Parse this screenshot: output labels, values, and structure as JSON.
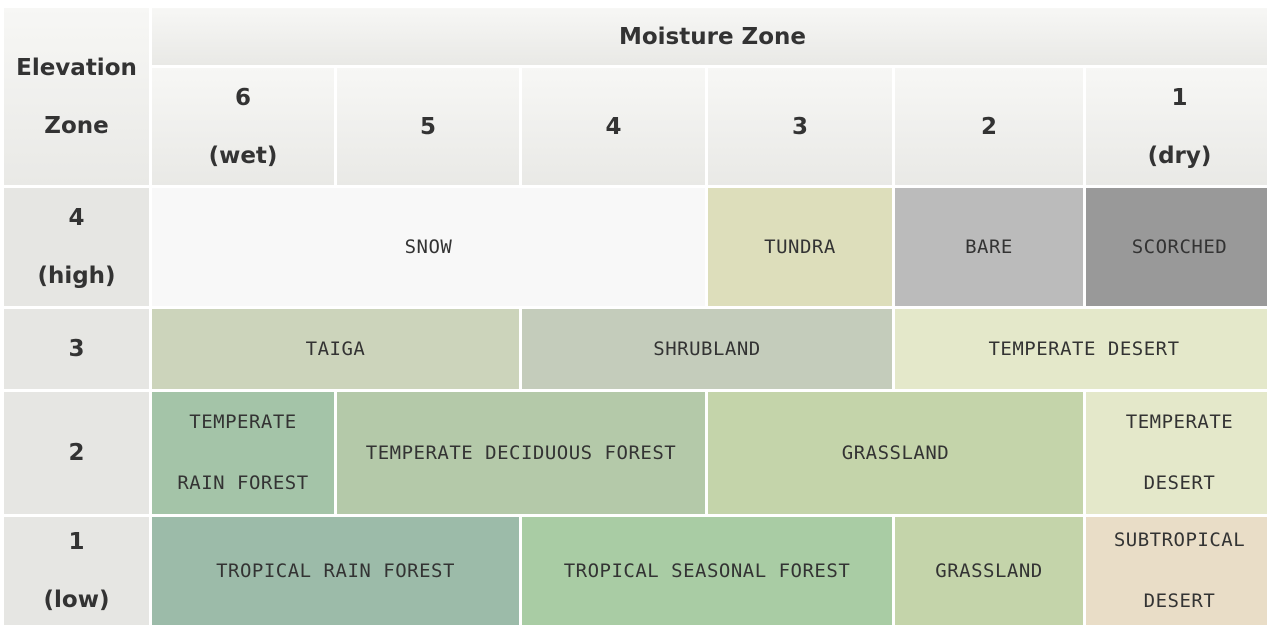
{
  "header": {
    "elevation_line1": "Elevation",
    "elevation_line2": "Zone",
    "moisture_title": "Moisture Zone"
  },
  "moisture_columns": [
    {
      "num": "6",
      "sub": "(wet)"
    },
    {
      "num": "5",
      "sub": ""
    },
    {
      "num": "4",
      "sub": ""
    },
    {
      "num": "3",
      "sub": ""
    },
    {
      "num": "2",
      "sub": ""
    },
    {
      "num": "1",
      "sub": "(dry)"
    }
  ],
  "elevation_rows": [
    {
      "num": "4",
      "sub": "(high)"
    },
    {
      "num": "3",
      "sub": ""
    },
    {
      "num": "2",
      "sub": ""
    },
    {
      "num": "1",
      "sub": "(low)"
    }
  ],
  "biomes": [
    {
      "label": "SNOW",
      "color": "#f8f8f8",
      "elev": 4,
      "moist_from": 6,
      "moist_to": 4
    },
    {
      "label": "TUNDRA",
      "color": "#dddebb",
      "elev": 4,
      "moist_from": 3,
      "moist_to": 3
    },
    {
      "label": "BARE",
      "color": "#bbbbbb",
      "elev": 4,
      "moist_from": 2,
      "moist_to": 2
    },
    {
      "label": "SCORCHED",
      "color": "#999999",
      "elev": 4,
      "moist_from": 1,
      "moist_to": 1
    },
    {
      "label": "TAIGA",
      "color": "#ccd4bb",
      "elev": 3,
      "moist_from": 6,
      "moist_to": 5
    },
    {
      "label": "SHRUBLAND",
      "color": "#c4ccbb",
      "elev": 3,
      "moist_from": 4,
      "moist_to": 3
    },
    {
      "label": "TEMPERATE DESERT",
      "color": "#e4e8ca",
      "elev": 3,
      "moist_from": 2,
      "moist_to": 1
    },
    {
      "label": "TEMPERATE\nRAIN FOREST",
      "color": "#a4c4a8",
      "elev": 2,
      "moist_from": 6,
      "moist_to": 6
    },
    {
      "label": "TEMPERATE DECIDUOUS FOREST",
      "color": "#b4c9a9",
      "elev": 2,
      "moist_from": 5,
      "moist_to": 4
    },
    {
      "label": "GRASSLAND",
      "color": "#c4d4aa",
      "elev": 2,
      "moist_from": 3,
      "moist_to": 2
    },
    {
      "label": "TEMPERATE\nDESERT",
      "color": "#e4e8ca",
      "elev": 2,
      "moist_from": 1,
      "moist_to": 1
    },
    {
      "label": "TROPICAL RAIN FOREST",
      "color": "#9cbba9",
      "elev": 1,
      "moist_from": 6,
      "moist_to": 5
    },
    {
      "label": "TROPICAL SEASONAL FOREST",
      "color": "#a9cca4",
      "elev": 1,
      "moist_from": 4,
      "moist_to": 3
    },
    {
      "label": "GRASSLAND",
      "color": "#c4d4aa",
      "elev": 1,
      "moist_from": 2,
      "moist_to": 2
    },
    {
      "label": "SUBTROPICAL\nDESERT",
      "color": "#e9ddc7",
      "elev": 1,
      "moist_from": 1,
      "moist_to": 1
    }
  ]
}
